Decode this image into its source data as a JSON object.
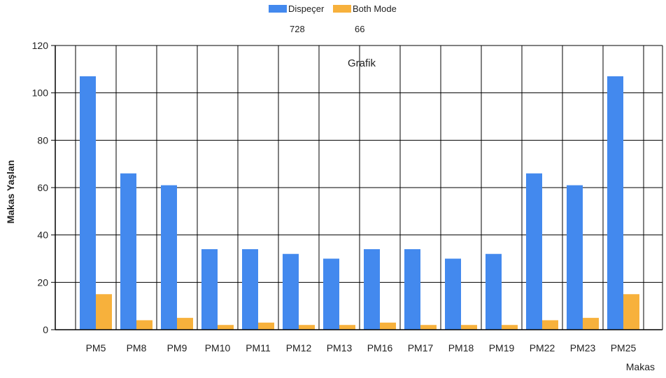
{
  "chart_data": {
    "type": "bar",
    "title": "Grafik",
    "xlabel": "Makas",
    "ylabel": "Makas Yaşlan",
    "ylim": [
      0,
      120
    ],
    "yticks": [
      0,
      20,
      40,
      60,
      80,
      100,
      120
    ],
    "grid": true,
    "legend_position": "top-center",
    "categories": [
      "PM5",
      "PM8",
      "PM9",
      "PM10",
      "PM11",
      "PM12",
      "PM13",
      "PM16",
      "PM17",
      "PM18",
      "PM19",
      "PM22",
      "PM23",
      "PM25"
    ],
    "series": [
      {
        "name": "Dispeçer",
        "total": "728",
        "color": "#4389ee",
        "values": [
          107,
          66,
          61,
          34,
          34,
          32,
          30,
          34,
          34,
          30,
          32,
          66,
          61,
          107
        ]
      },
      {
        "name": "Both Mode",
        "total": "66",
        "color": "#f7b13c",
        "values": [
          15,
          4,
          5,
          2,
          3,
          2,
          2,
          3,
          2,
          2,
          2,
          4,
          5,
          15
        ]
      }
    ]
  }
}
